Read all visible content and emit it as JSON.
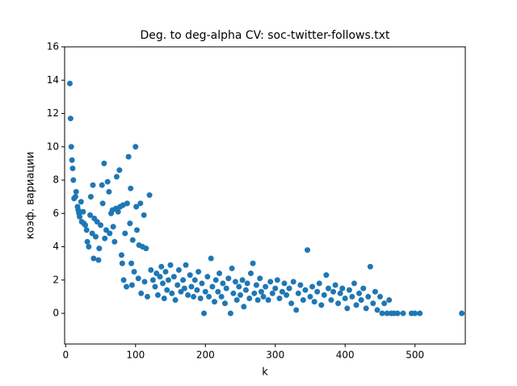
{
  "chart_data": {
    "type": "scatter",
    "title": "Deg. to deg-alpha CV: soc-twitter-follows.txt",
    "x_label": "k",
    "y_label": "коэф. вариации",
    "color": "#1f77b4",
    "xlim": [
      -1.5,
      572
    ],
    "ylim": [
      -1.84,
      16
    ],
    "xticks": [
      0,
      100,
      200,
      300,
      400,
      500
    ],
    "yticks": [
      0,
      2,
      4,
      6,
      8,
      10,
      12,
      14,
      16
    ],
    "x": [
      6,
      7,
      8,
      9,
      10,
      11,
      12,
      14,
      15,
      17,
      18,
      19,
      20,
      22,
      23,
      25,
      26,
      28,
      30,
      31,
      33,
      35,
      36,
      38,
      39,
      40,
      41,
      43,
      45,
      47,
      48,
      50,
      52,
      53,
      55,
      56,
      58,
      60,
      62,
      63,
      65,
      67,
      68,
      70,
      72,
      73,
      75,
      77,
      78,
      80,
      81,
      82,
      83,
      85,
      87,
      88,
      90,
      92,
      93,
      94,
      95,
      96,
      98,
      100,
      101,
      102,
      104,
      105,
      107,
      108,
      110,
      112,
      113,
      115,
      117,
      120,
      122,
      125,
      128,
      130,
      132,
      135,
      137,
      139,
      141,
      143,
      145,
      147,
      150,
      152,
      155,
      157,
      160,
      162,
      165,
      168,
      170,
      172,
      175,
      178,
      180,
      183,
      185,
      188,
      190,
      193,
      195,
      198,
      200,
      203,
      205,
      208,
      210,
      213,
      215,
      218,
      220,
      223,
      225,
      228,
      230,
      233,
      236,
      238,
      240,
      243,
      245,
      248,
      250,
      253,
      255,
      258,
      260,
      263,
      265,
      268,
      270,
      273,
      275,
      278,
      280,
      283,
      286,
      290,
      293,
      296,
      300,
      303,
      306,
      310,
      313,
      316,
      320,
      323,
      326,
      330,
      333,
      336,
      340,
      343,
      346,
      350,
      353,
      356,
      360,
      363,
      366,
      370,
      373,
      376,
      380,
      383,
      386,
      390,
      393,
      396,
      400,
      403,
      406,
      410,
      413,
      416,
      420,
      423,
      426,
      430,
      433,
      436,
      440,
      443,
      446,
      450,
      453,
      456,
      460,
      463,
      466,
      470,
      475,
      483,
      495,
      500,
      507,
      567
    ],
    "values": [
      13.8,
      11.7,
      10,
      9.2,
      8.7,
      8.0,
      6.9,
      7.0,
      7.3,
      6.4,
      6.2,
      6.0,
      5.8,
      6.7,
      5.5,
      6.1,
      5.4,
      5.3,
      5.0,
      4.3,
      4.0,
      5.9,
      7.0,
      4.8,
      7.7,
      3.3,
      5.7,
      4.6,
      5.5,
      3.2,
      3.9,
      5.3,
      7.7,
      6.6,
      9.0,
      4.5,
      5.0,
      7.9,
      7.3,
      4.8,
      6.0,
      6.2,
      5.2,
      4.3,
      6.3,
      8.2,
      6.1,
      8.6,
      6.4,
      3.5,
      3.0,
      6.5,
      2.0,
      4.8,
      1.6,
      6.6,
      9.4,
      5.4,
      7.5,
      3.0,
      1.7,
      4.4,
      2.5,
      10.0,
      6.4,
      5.0,
      2.1,
      4.1,
      6.6,
      1.2,
      4.0,
      5.9,
      1.9,
      3.9,
      1.0,
      7.1,
      2.6,
      2.0,
      1.6,
      2.4,
      1.1,
      2.2,
      2.8,
      1.8,
      0.9,
      2.5,
      1.4,
      2.0,
      2.9,
      1.2,
      2.2,
      0.8,
      1.7,
      2.6,
      1.3,
      2.0,
      1.5,
      2.9,
      1.1,
      2.3,
      1.6,
      1.0,
      2.0,
      1.4,
      2.5,
      0.9,
      1.8,
      0.0,
      1.3,
      2.2,
      1.0,
      3.3,
      1.6,
      0.7,
      2.0,
      1.3,
      2.4,
      1.0,
      1.8,
      0.6,
      1.5,
      2.1,
      0.0,
      2.7,
      1.2,
      1.9,
      0.8,
      1.6,
      1.1,
      2.0,
      0.4,
      1.4,
      1.8,
      0.9,
      2.4,
      3.0,
      1.2,
      1.7,
      0.8,
      2.1,
      1.3,
      1.0,
      1.6,
      0.8,
      1.9,
      1.2,
      1.5,
      2.0,
      0.9,
      1.3,
      1.8,
      1.1,
      1.5,
      0.6,
      1.9,
      0.2,
      1.2,
      1.7,
      0.8,
      1.4,
      3.8,
      1.0,
      1.6,
      0.7,
      1.3,
      1.8,
      0.5,
      1.1,
      2.3,
      1.5,
      0.8,
      1.3,
      1.7,
      0.6,
      1.2,
      1.5,
      0.9,
      0.3,
      1.4,
      1.0,
      1.8,
      0.5,
      1.2,
      0.8,
      1.5,
      0.3,
      1.0,
      2.8,
      0.6,
      1.3,
      0.2,
      1.0,
      0.0,
      0.6,
      0.0,
      0.8,
      0.0,
      0.0,
      0.0,
      0.0,
      0.0,
      0.0,
      0.0,
      0.0
    ]
  }
}
